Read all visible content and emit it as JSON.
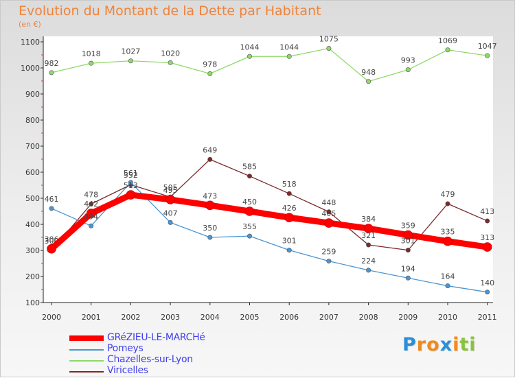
{
  "title": "Evolution du Montant de la Dette par Habitant",
  "subtitle": "(en €)",
  "chart_data": {
    "type": "line",
    "x": [
      "2000",
      "2001",
      "2002",
      "2003",
      "2004",
      "2005",
      "2006",
      "2007",
      "2008",
      "2009",
      "2010",
      "2011"
    ],
    "ylim": [
      100,
      1100
    ],
    "yticks": [
      100,
      200,
      300,
      400,
      500,
      600,
      700,
      800,
      900,
      1000,
      1100
    ],
    "grid": false,
    "legend_position": "bottom-left",
    "series": [
      {
        "name": "GRéZIEU-LE-MARCHé",
        "color": "#ff0000",
        "values": [
          306,
          442,
          513,
          495,
          473,
          450,
          426,
          405,
          384,
          359,
          335,
          313
        ],
        "labels": [
          "306",
          "442",
          "513",
          "495",
          "473",
          "450",
          "426",
          "405",
          "384",
          "359",
          "335",
          "313"
        ]
      },
      {
        "name": "Pomeys",
        "color": "#4a95d2",
        "values": [
          461,
          394,
          561,
          407,
          350,
          355,
          301,
          259,
          224,
          194,
          164,
          140
        ],
        "labels": [
          "461",
          "394",
          "561",
          "407",
          "350",
          "355",
          "301",
          "259",
          "224",
          "194",
          "164",
          "140"
        ]
      },
      {
        "name": "Chazelles-sur-Lyon",
        "color": "#8fd96a",
        "values": [
          982,
          1018,
          1027,
          1020,
          978,
          1044,
          1044,
          1075,
          948,
          993,
          1069,
          1047
        ],
        "labels": [
          "982",
          "1018",
          "1027",
          "1020",
          "978",
          "1044",
          "1044",
          "1075",
          "948",
          "993",
          "1069",
          "1047"
        ]
      },
      {
        "name": "Viricelles",
        "color": "#7a2a2a",
        "values": [
          300,
          478,
          552,
          505,
          649,
          585,
          518,
          448,
          321,
          301,
          479,
          413
        ],
        "labels": [
          "300",
          "478",
          "552",
          "505",
          "649",
          "585",
          "518",
          "448",
          "321",
          "301",
          "479",
          "413"
        ]
      }
    ]
  },
  "logo": {
    "letters": [
      "P",
      "r",
      "o",
      "x",
      "i",
      "t",
      "i"
    ],
    "colors": [
      "#2b8fd8",
      "#f08a1e",
      "#f08a1e",
      "#2b8fd8",
      "#f08a1e",
      "#8ac43a",
      "#8ac43a"
    ]
  }
}
